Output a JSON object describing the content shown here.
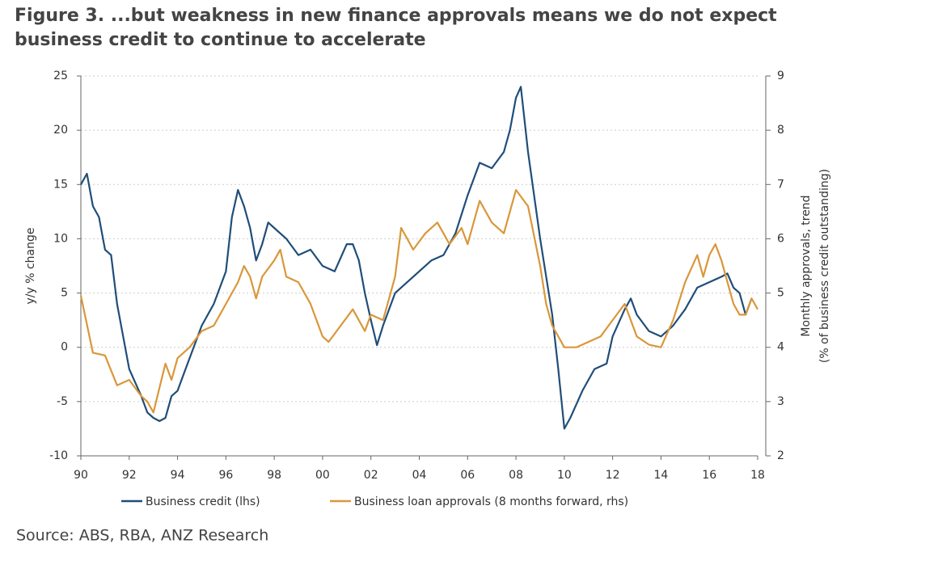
{
  "chart_data": {
    "type": "line",
    "title": [
      "Figure 3. ...but weakness in new finance approvals means we do not expect",
      "business credit to continue to accelerate"
    ],
    "ylabel": "y/y % change",
    "y2label": [
      "Monthly approvals, trend",
      "(% of business credit outstanding)"
    ],
    "source": "Source: ABS, RBA, ANZ Research",
    "xlim": [
      1990,
      2018
    ],
    "xticks": [
      {
        "value": 1990,
        "label": "90"
      },
      {
        "value": 1992,
        "label": "92"
      },
      {
        "value": 1994,
        "label": "94"
      },
      {
        "value": 1996,
        "label": "96"
      },
      {
        "value": 1998,
        "label": "98"
      },
      {
        "value": 2000,
        "label": "00"
      },
      {
        "value": 2002,
        "label": "02"
      },
      {
        "value": 2004,
        "label": "04"
      },
      {
        "value": 2006,
        "label": "06"
      },
      {
        "value": 2008,
        "label": "08"
      },
      {
        "value": 2010,
        "label": "10"
      },
      {
        "value": 2012,
        "label": "12"
      },
      {
        "value": 2014,
        "label": "14"
      },
      {
        "value": 2016,
        "label": "16"
      },
      {
        "value": 2018,
        "label": "18"
      }
    ],
    "ylim": [
      -10,
      25
    ],
    "yticks": [
      -10,
      -5,
      0,
      5,
      10,
      15,
      20,
      25
    ],
    "y2lim": [
      2,
      9
    ],
    "y2ticks": [
      2,
      3,
      4,
      5,
      6,
      7,
      8,
      9
    ],
    "grid": true,
    "series": [
      {
        "name": "Business credit (lhs)",
        "color": "#1f4e79",
        "x": [
          1990,
          1990.25,
          1990.5,
          1990.75,
          1991,
          1991.25,
          1991.5,
          1991.75,
          1992,
          1992.5,
          1992.75,
          1993,
          1993.25,
          1993.5,
          1993.75,
          1994,
          1994.25,
          1994.5,
          1995,
          1995.5,
          1996,
          1996.25,
          1996.5,
          1996.75,
          1997,
          1997.25,
          1997.5,
          1997.75,
          1998,
          1998.5,
          1999,
          1999.5,
          2000,
          2000.5,
          2001,
          2001.25,
          2001.5,
          2001.75,
          2002,
          2002.25,
          2002.5,
          2003,
          2003.5,
          2004,
          2004.5,
          2005,
          2005.5,
          2006,
          2006.5,
          2007,
          2007.5,
          2007.75,
          2008,
          2008.2,
          2008.5,
          2009,
          2009.5,
          2009.75,
          2010,
          2010.25,
          2010.75,
          2011.25,
          2011.75,
          2012,
          2012.5,
          2012.75,
          2013,
          2013.5,
          2014,
          2014.5,
          2015,
          2015.5,
          2016,
          2016.5,
          2016.75,
          2017,
          2017.25,
          2017.5,
          2017.75
        ],
        "values": [
          15,
          16,
          13,
          12,
          9,
          8.5,
          4,
          1,
          -2,
          -4.5,
          -6,
          -6.5,
          -6.8,
          -6.5,
          -4.5,
          -4,
          -2.5,
          -1,
          2,
          4,
          7,
          12,
          14.5,
          13,
          11,
          8,
          9.5,
          11.5,
          11,
          10,
          8.5,
          9,
          7.5,
          7,
          9.5,
          9.5,
          8,
          5,
          2.5,
          0.2,
          2,
          5,
          6,
          7,
          8,
          8.5,
          10.5,
          14,
          17,
          16.5,
          18,
          20,
          23,
          24,
          18,
          10,
          3,
          -2,
          -7.5,
          -6.5,
          -4,
          -2,
          -1.5,
          1,
          3.5,
          4.5,
          3,
          1.5,
          1,
          2,
          3.5,
          5.5,
          6,
          6.5,
          6.8,
          5.5,
          5,
          3,
          4.5
        ]
      },
      {
        "name": "Business loan approvals (8 months forward, rhs)",
        "color": "#d9973a",
        "axis": "y2",
        "x": [
          1990,
          1990.5,
          1991,
          1991.5,
          1992,
          1992.5,
          1992.75,
          1993,
          1993.5,
          1993.75,
          1994,
          1994.5,
          1995,
          1995.5,
          1996,
          1996.5,
          1996.75,
          1997,
          1997.25,
          1997.5,
          1998,
          1998.25,
          1998.5,
          1999,
          1999.5,
          2000,
          2000.25,
          2000.75,
          2001.25,
          2001.75,
          2002,
          2002.5,
          2003,
          2003.25,
          2003.5,
          2003.75,
          2004.25,
          2004.75,
          2005,
          2005.25,
          2005.75,
          2006,
          2006.5,
          2007,
          2007.5,
          2008,
          2008.5,
          2009,
          2009.25,
          2009.5,
          2010,
          2010.5,
          2011,
          2011.5,
          2012,
          2012.5,
          2013,
          2013.5,
          2014,
          2014.5,
          2015,
          2015.5,
          2015.75,
          2016,
          2016.25,
          2016.5,
          2016.75,
          2017,
          2017.25,
          2017.5,
          2017.75,
          2018
        ],
        "values": [
          4.95,
          3.9,
          3.85,
          3.3,
          3.4,
          3.1,
          3.0,
          2.8,
          3.7,
          3.4,
          3.8,
          4.0,
          4.3,
          4.4,
          4.8,
          5.2,
          5.5,
          5.3,
          4.9,
          5.3,
          5.6,
          5.8,
          5.3,
          5.2,
          4.8,
          4.2,
          4.1,
          4.4,
          4.7,
          4.3,
          4.6,
          4.5,
          5.3,
          6.2,
          6.0,
          5.8,
          6.1,
          6.3,
          6.1,
          5.9,
          6.2,
          5.9,
          6.7,
          6.3,
          6.1,
          6.9,
          6.6,
          5.5,
          4.8,
          4.4,
          4.0,
          4.0,
          4.1,
          4.2,
          4.5,
          4.8,
          4.2,
          4.05,
          4.0,
          4.5,
          5.2,
          5.7,
          5.3,
          5.7,
          5.9,
          5.6,
          5.2,
          4.8,
          4.6,
          4.6,
          4.9,
          4.7
        ]
      }
    ]
  }
}
